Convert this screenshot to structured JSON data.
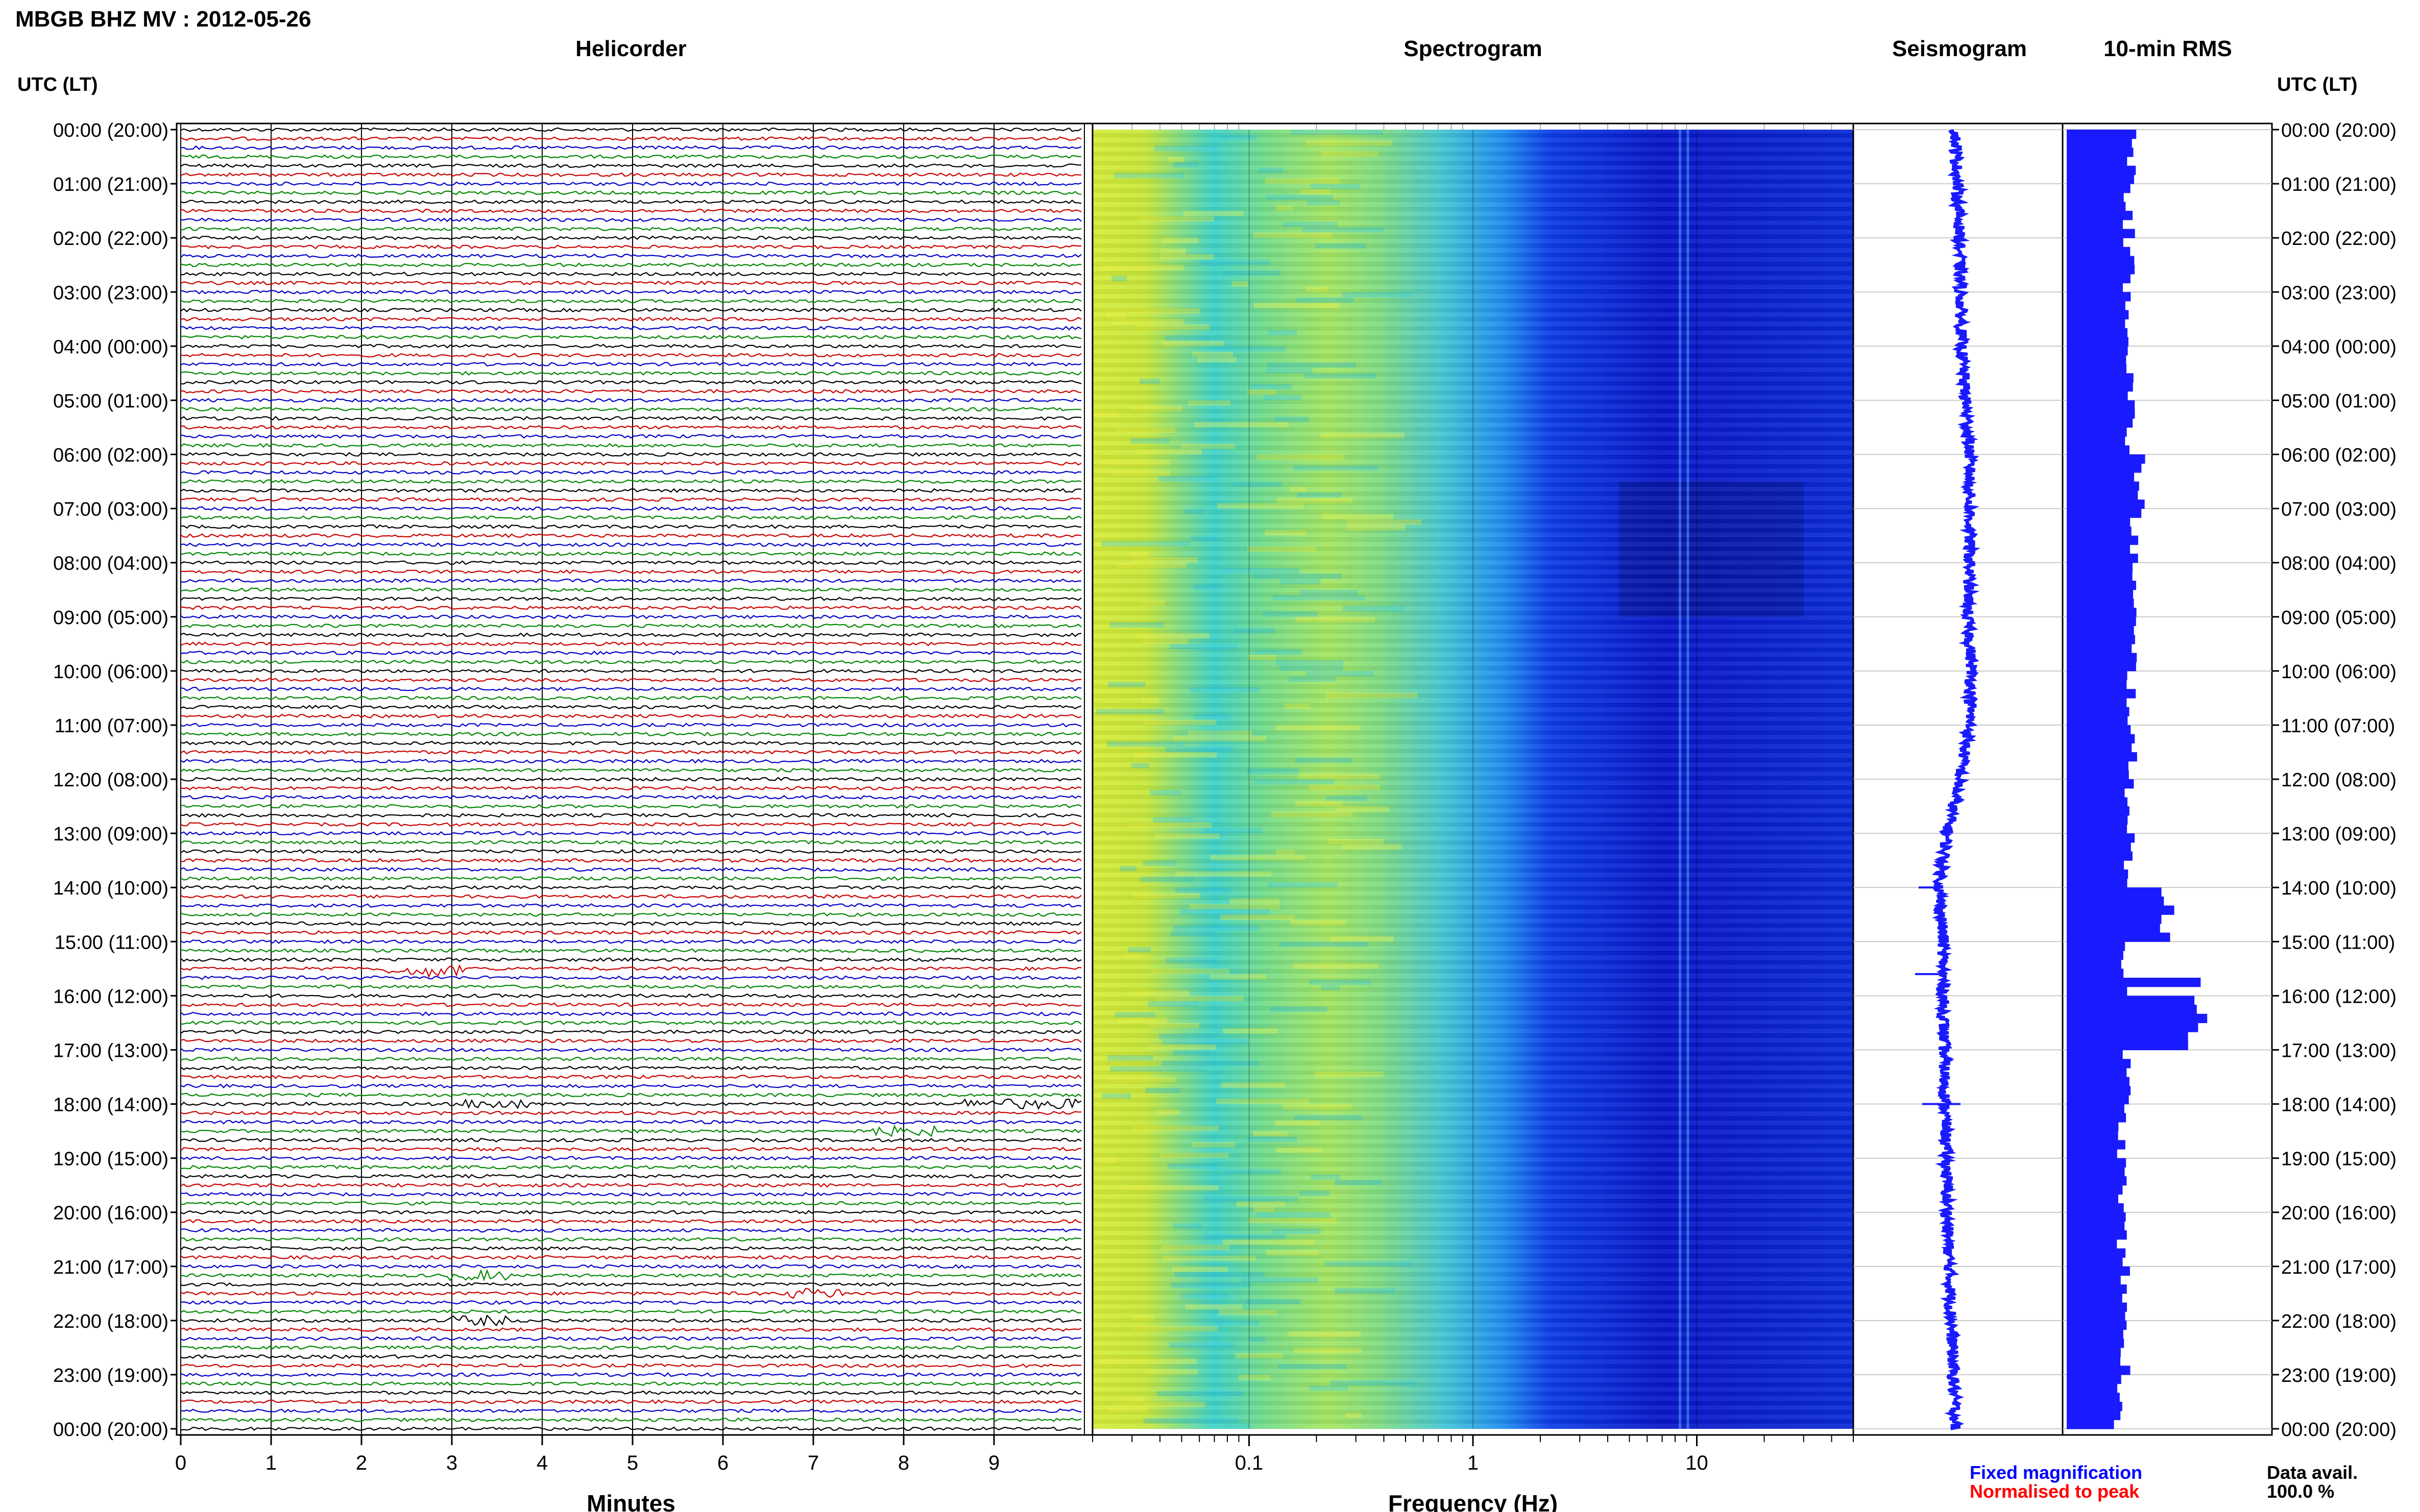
{
  "header": {
    "station_title": "MBGB BHZ MV : 2012-05-26",
    "utc_label_left": "UTC (LT)",
    "utc_label_right": "UTC (LT)"
  },
  "panels": {
    "helicorder_title": "Helicorder",
    "spectrogram_title": "Spectrogram",
    "seismogram_title": "Seismogram",
    "rms_title": "10-min RMS"
  },
  "footer": {
    "fixed_magnification": "Fixed magnification",
    "normalised_to_peak": "Normalised to peak",
    "data_avail_label": "Data avail.",
    "data_avail_value": "100.0 %"
  },
  "colors": {
    "trace_cycle": [
      "#000000",
      "#cc0000",
      "#0000cc",
      "#008800"
    ],
    "seismogram": "#1a1aff",
    "rms_bar": "#1a1aff",
    "fixed_magnification_text": "#0000ff",
    "normalised_text": "#ff0000"
  },
  "chart_data": [
    {
      "type": "line",
      "panel": "Helicorder",
      "xlabel": "Minutes",
      "x_ticks": [
        "0",
        "1",
        "2",
        "3",
        "4",
        "5",
        "6",
        "7",
        "8",
        "9"
      ],
      "xlim": [
        0,
        10
      ],
      "traces_per_hour": 6,
      "time_labels": [
        "00:00 (20:00)",
        "01:00 (21:00)",
        "02:00 (22:00)",
        "03:00 (23:00)",
        "04:00 (00:00)",
        "05:00 (01:00)",
        "06:00 (02:00)",
        "07:00 (03:00)",
        "08:00 (04:00)",
        "09:00 (05:00)",
        "10:00 (06:00)",
        "11:00 (07:00)",
        "12:00 (08:00)",
        "13:00 (09:00)",
        "14:00 (10:00)",
        "15:00 (11:00)",
        "16:00 (12:00)",
        "17:00 (13:00)",
        "18:00 (14:00)",
        "19:00 (15:00)",
        "20:00 (16:00)",
        "21:00 (17:00)",
        "22:00 (18:00)",
        "23:00 (19:00)",
        "00:00 (20:00)"
      ],
      "events": [
        {
          "hour": 15.6,
          "minute": 2.8,
          "amplitude": "small"
        },
        {
          "hour": 18.0,
          "minute": 3.5,
          "amplitude": "small"
        },
        {
          "hour": 18.0,
          "minute": 9.0,
          "amplitude": "small"
        },
        {
          "hour": 18.0,
          "minute": 9.7,
          "amplitude": "small"
        },
        {
          "hour": 18.5,
          "minute": 8.0,
          "amplitude": "small"
        },
        {
          "hour": 21.3,
          "minute": 3.3,
          "amplitude": "small"
        },
        {
          "hour": 21.6,
          "minute": 7.0,
          "amplitude": "small"
        },
        {
          "hour": 22.0,
          "minute": 3.3,
          "amplitude": "small"
        }
      ]
    },
    {
      "type": "heatmap",
      "panel": "Spectrogram",
      "xlabel": "Frequency (Hz)",
      "x_scale": "log",
      "xlim": [
        0.02,
        50
      ],
      "x_ticks": [
        "0.1",
        "1",
        "10"
      ],
      "colormap": "blue-cyan-yellow",
      "description_bands": [
        {
          "freq_range": [
            0.02,
            0.06
          ],
          "level": "high"
        },
        {
          "freq_range": [
            0.06,
            1.0
          ],
          "level": "medium"
        },
        {
          "freq_range": [
            1.0,
            3.0
          ],
          "level": "medium-low"
        },
        {
          "freq_range": [
            3.0,
            50
          ],
          "level": "low"
        }
      ]
    },
    {
      "type": "line",
      "panel": "Seismogram",
      "description": "Continuous 24 h trace; centre offset in relative units (left negative)",
      "points_hour": [
        0,
        2,
        4,
        6,
        8,
        9,
        10,
        11,
        12,
        13,
        14,
        15,
        16,
        18,
        20,
        22,
        24
      ],
      "points_offset": [
        0.0,
        0.1,
        0.15,
        0.35,
        0.35,
        0.3,
        0.4,
        0.35,
        0.1,
        -0.2,
        -0.4,
        -0.3,
        -0.3,
        -0.25,
        -0.2,
        -0.1,
        0.0
      ]
    },
    {
      "type": "bar",
      "panel": "10-min RMS",
      "orientation": "horizontal",
      "bins_per_hour": 6,
      "values_hourly_relative": [
        1.0,
        0.95,
        0.95,
        0.98,
        0.97,
        0.97,
        1.1,
        1.05,
        1.0,
        1.0,
        1.0,
        0.98,
        0.98,
        0.97,
        1.5,
        0.9,
        2.05,
        0.9,
        0.85,
        0.85,
        0.85,
        0.88,
        0.9,
        0.8
      ],
      "peaks": [
        {
          "hour": 6.0,
          "value": 1.2
        },
        {
          "hour": 14.0,
          "value": 1.45
        },
        {
          "hour": 15.6,
          "value": 2.05
        }
      ]
    }
  ]
}
